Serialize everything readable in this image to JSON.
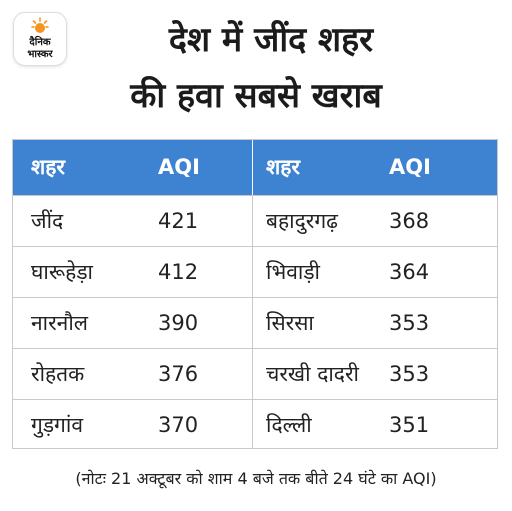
{
  "brand": {
    "line1": "दैनिक",
    "line2": "भास्कर",
    "accent_color": "#f7941d",
    "icon": "sun-icon"
  },
  "headline": {
    "line1": "देश में जींद शहर",
    "line2": "की हवा सबसे खराब"
  },
  "table": {
    "header_color": "#3e83d1",
    "headers": [
      "शहर",
      "AQI",
      "शहर",
      "AQI"
    ],
    "rows": [
      [
        "जींद",
        "421",
        "बहादुरगढ़",
        "368"
      ],
      [
        "घारूहेड़ा",
        "412",
        "भिवाड़ी",
        "364"
      ],
      [
        "नारनौल",
        "390",
        "सिरसा",
        "353"
      ],
      [
        "रोहतक",
        "376",
        "चरखी दादरी",
        "353"
      ],
      [
        "गुड़गांव",
        "370",
        "दिल्ली",
        "351"
      ]
    ]
  },
  "note": "(नोटः 21 अक्टूबर को शाम 4 बजे तक बीते 24 घंटे का AQI)"
}
